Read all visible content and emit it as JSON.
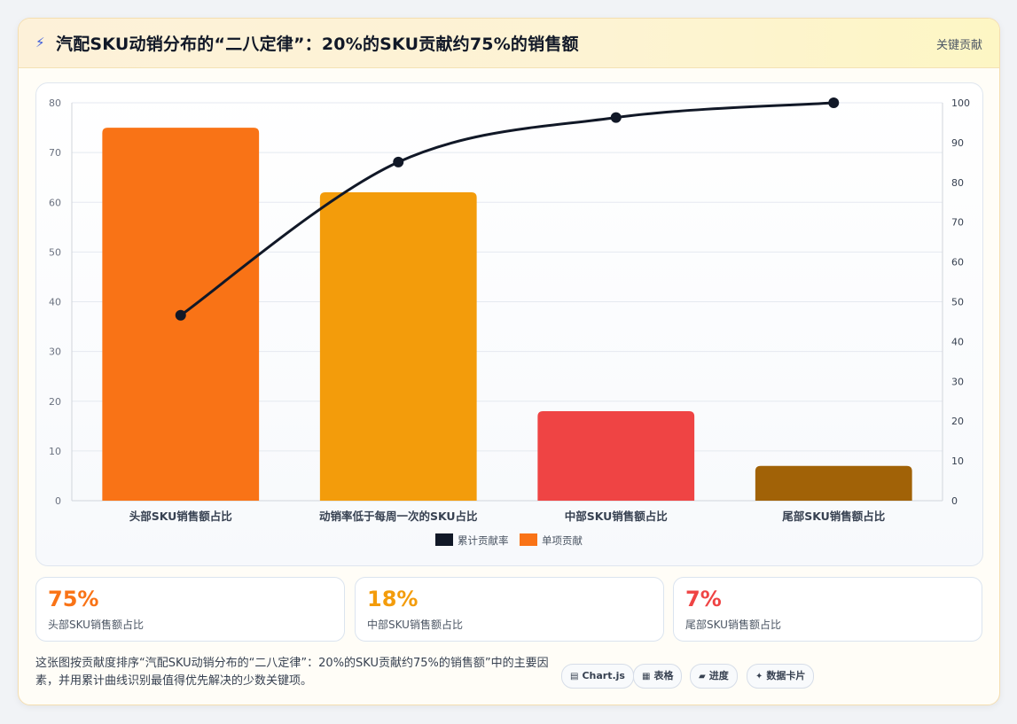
{
  "header": {
    "title": "汽配SKU动销分布的“二八定律”：20%的SKU贡献约75%的销售额",
    "icon": "lightning-icon",
    "tag": "关键贡献"
  },
  "chart_data": {
    "type": "bar",
    "categories": [
      "头部SKU销售额占比",
      "动销率低于每周一次的SKU占比",
      "中部SKU销售额占比",
      "尾部SKU销售额占比"
    ],
    "series": [
      {
        "name": "单项贡献",
        "type": "bar",
        "axis": "left",
        "values": [
          75,
          62,
          18,
          7
        ],
        "colors": [
          "#f97316",
          "#f39c0b",
          "#ef4444",
          "#a16207"
        ]
      },
      {
        "name": "累计贡献率",
        "type": "line",
        "axis": "right",
        "values": [
          46.6,
          85.1,
          96.3,
          100
        ],
        "color": "#111827"
      }
    ],
    "y_left": {
      "ticks": [
        0,
        10,
        20,
        30,
        40,
        50,
        60,
        70,
        80
      ],
      "lim": [
        0,
        80
      ]
    },
    "y_right": {
      "ticks": [
        0,
        10,
        20,
        30,
        40,
        50,
        60,
        70,
        80,
        90,
        100
      ],
      "lim": [
        0,
        100
      ]
    },
    "legend": [
      "累计贡献率",
      "单项贡献"
    ],
    "legend_position": "bottom",
    "grid": true
  },
  "stats": [
    {
      "value": "75%",
      "label": "头部SKU销售额占比",
      "color": "#f97316"
    },
    {
      "value": "18%",
      "label": "中部SKU销售额占比",
      "color": "#f39c0b"
    },
    {
      "value": "7%",
      "label": "尾部SKU销售额占比",
      "color": "#ef4444"
    }
  ],
  "description": "这张图按贡献度排序“汽配SKU动销分布的“二八定律”：20%的SKU贡献约75%的销售额”中的主要因素，并用累计曲线识别最值得优先解决的少数关键项。",
  "pills": [
    {
      "icon": "chart-icon",
      "label": "Chart.js"
    },
    {
      "icon": "table-icon",
      "label": "表格"
    },
    {
      "icon": "progress-icon",
      "label": "进度"
    },
    {
      "icon": "card-icon",
      "label": "数据卡片"
    }
  ]
}
